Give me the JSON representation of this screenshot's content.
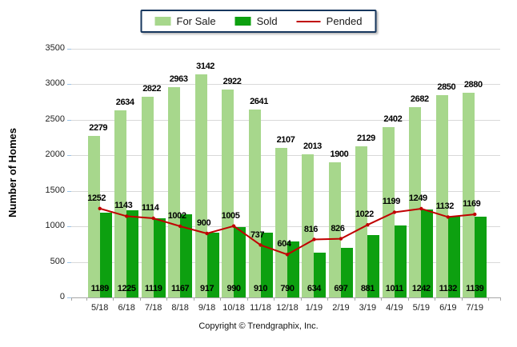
{
  "legend": {
    "items": [
      {
        "label": "For Sale",
        "swatch": "light-green-box"
      },
      {
        "label": "Sold",
        "swatch": "dark-green-box"
      },
      {
        "label": "Pended",
        "swatch": "red-line"
      }
    ]
  },
  "chart_data": {
    "type": "bar",
    "title": "",
    "categories": [
      "5/18",
      "6/18",
      "7/18",
      "8/18",
      "9/18",
      "10/18",
      "11/18",
      "12/18",
      "1/19",
      "2/19",
      "3/19",
      "4/19",
      "5/19",
      "6/19",
      "7/19"
    ],
    "series": [
      {
        "name": "For Sale",
        "type": "bar",
        "color": "#A7D78C",
        "values": [
          2279,
          2634,
          2822,
          2963,
          3142,
          2922,
          2641,
          2107,
          2013,
          1900,
          2129,
          2402,
          2682,
          2850,
          2880
        ]
      },
      {
        "name": "Sold",
        "type": "bar",
        "color": "#0DA010",
        "values": [
          1189,
          1225,
          1119,
          1167,
          917,
          990,
          910,
          790,
          634,
          697,
          881,
          1011,
          1242,
          1132,
          1139
        ]
      },
      {
        "name": "Pended",
        "type": "line",
        "color": "#C00000",
        "values": [
          1252,
          1143,
          1114,
          1002,
          900,
          1005,
          737,
          604,
          816,
          826,
          1022,
          1199,
          1249,
          1132,
          1169
        ]
      }
    ],
    "xlabel": "",
    "ylabel": "Number of Homes",
    "ylim": [
      0,
      3500
    ],
    "yticks": [
      0,
      500,
      1000,
      1500,
      2000,
      2500,
      3000,
      3500
    ],
    "grid": true,
    "legend_position": "top-center"
  },
  "colors": {
    "legend_border": "#17375E",
    "gridline": "#D9D9D9",
    "axis_line": "#A6A6A6",
    "y_tick": "#9DC3E6",
    "value_label": "#000000",
    "background": "#FFFFFF"
  },
  "footer": {
    "copyright": "Copyright © Trendgraphix, Inc."
  }
}
